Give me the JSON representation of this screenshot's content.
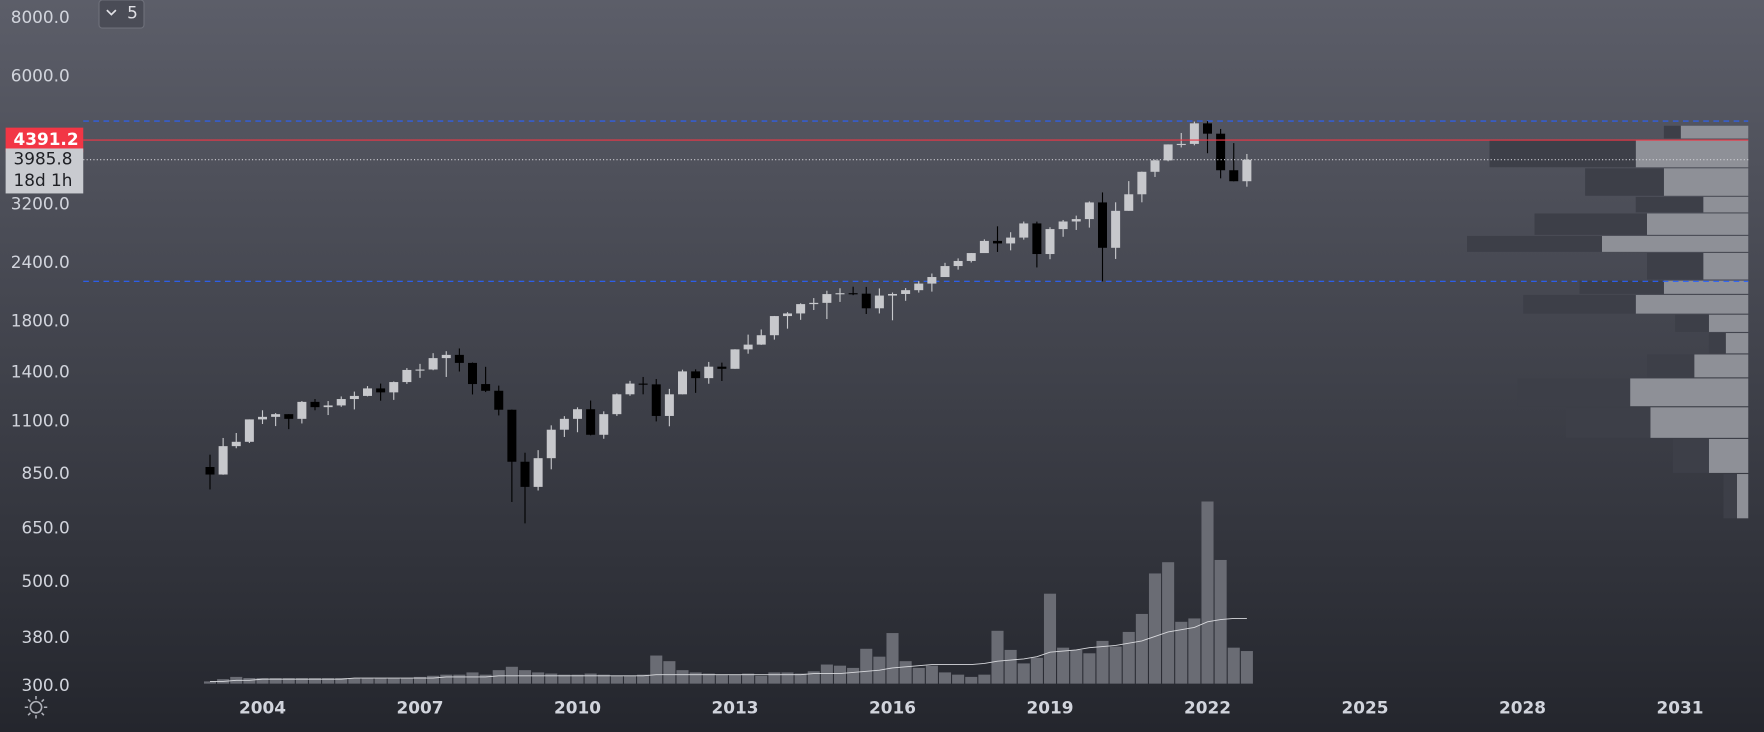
{
  "chart_data": {
    "type": "candlestick",
    "xlim": [
      1999,
      2032.6
    ],
    "xticks": [
      2004,
      2007,
      2010,
      2013,
      2016,
      2019,
      2022,
      2025,
      2028,
      2031
    ],
    "ylim": [
      300,
      8740
    ],
    "log_scale": true,
    "grid": false,
    "yticks": [
      {
        "value": 8000,
        "label": "8000.0"
      },
      {
        "value": 6000,
        "label": "6000.0"
      },
      {
        "value": 3200,
        "label": "3200.0"
      },
      {
        "value": 2400,
        "label": "2400.0"
      },
      {
        "value": 1800,
        "label": "1800.0"
      },
      {
        "value": 1400,
        "label": "1400.0"
      },
      {
        "value": 1100,
        "label": "1100.0"
      },
      {
        "value": 850,
        "label": "850.0"
      },
      {
        "value": 650,
        "label": "650.0"
      },
      {
        "value": 500,
        "label": "500.0"
      },
      {
        "value": 380,
        "label": "380.0"
      },
      {
        "value": 300,
        "label": "300.0"
      }
    ],
    "interval_button": "5",
    "marker_price": 4391.2,
    "marker_color": "#f23645",
    "last_price": 3985.8,
    "countdown": "18d 1h",
    "range_lines": [
      4818.6,
      2191.9
    ],
    "range_color": "#2962ff",
    "bull_color": "#c7c8cc",
    "bear_color": "#000000",
    "x": [
      2003,
      2003.25,
      2003.5,
      2003.75,
      2004,
      2004.25,
      2004.5,
      2004.75,
      2005,
      2005.25,
      2005.5,
      2005.75,
      2006,
      2006.25,
      2006.5,
      2006.75,
      2007,
      2007.25,
      2007.5,
      2007.75,
      2008,
      2008.25,
      2008.5,
      2008.75,
      2009,
      2009.25,
      2009.5,
      2009.75,
      2010,
      2010.25,
      2010.5,
      2010.75,
      2011,
      2011.25,
      2011.5,
      2011.75,
      2012,
      2012.25,
      2012.5,
      2012.75,
      2013,
      2013.25,
      2013.5,
      2013.75,
      2014,
      2014.25,
      2014.5,
      2014.75,
      2015,
      2015.25,
      2015.5,
      2015.75,
      2016,
      2016.25,
      2016.5,
      2016.75,
      2017,
      2017.25,
      2017.5,
      2017.75,
      2018,
      2018.25,
      2018.5,
      2018.75,
      2019,
      2019.25,
      2019.5,
      2019.75,
      2020,
      2020.25,
      2020.5,
      2020.75,
      2021,
      2021.25,
      2021.5,
      2021.75,
      2022,
      2022.25,
      2022.5,
      2022.75
    ],
    "open": [
      880,
      848,
      975,
      996,
      1112,
      1126,
      1141,
      1115,
      1212,
      1181,
      1191,
      1229,
      1248,
      1295,
      1270,
      1336,
      1418,
      1421,
      1503,
      1527,
      1468,
      1323,
      1280,
      1166,
      903,
      798,
      919,
      1057,
      1115,
      1169,
      1031,
      1141,
      1258,
      1326,
      1321,
      1131,
      1258,
      1408,
      1362,
      1441,
      1426,
      1569,
      1606,
      1682,
      1848,
      1872,
      1960,
      1972,
      2059,
      2068,
      2063,
      1920,
      2044,
      2060,
      2099,
      2168,
      2239,
      2363,
      2423,
      2519,
      2674,
      2641,
      2718,
      2914,
      2507,
      2834,
      2942,
      2977,
      3231,
      2585,
      3100,
      3363,
      3756,
      3973,
      4297,
      4308,
      4766,
      4530,
      3785,
      3586
    ],
    "high": [
      935,
      1015,
      1040,
      1112,
      1163,
      1147,
      1141,
      1217,
      1229,
      1217,
      1245,
      1275,
      1310,
      1326,
      1340,
      1431,
      1461,
      1540,
      1555,
      1576,
      1471,
      1440,
      1313,
      1167,
      944,
      956,
      1080,
      1130,
      1180,
      1220,
      1157,
      1263,
      1344,
      1370,
      1356,
      1292,
      1420,
      1422,
      1475,
      1470,
      1570,
      1687,
      1730,
      1849,
      1884,
      1968,
      2019,
      2093,
      2119,
      2135,
      2133,
      2117,
      2075,
      2121,
      2194,
      2278,
      2401,
      2454,
      2520,
      2695,
      2873,
      2791,
      2941,
      2940,
      2860,
      2964,
      3028,
      3247,
      3394,
      3233,
      3588,
      3760,
      3984,
      4298,
      4546,
      4808,
      4818,
      4637,
      4325,
      4100
    ],
    "low": [
      788,
      847,
      965,
      990,
      1087,
      1076,
      1060,
      1090,
      1163,
      1136,
      1183,
      1168,
      1245,
      1219,
      1224,
      1324,
      1364,
      1416,
      1370,
      1407,
      1257,
      1272,
      1134,
      741,
      667,
      784,
      870,
      1020,
      1044,
      1028,
      1011,
      1131,
      1249,
      1258,
      1101,
      1075,
      1258,
      1267,
      1325,
      1343,
      1426,
      1536,
      1604,
      1646,
      1737,
      1814,
      1904,
      1821,
      1981,
      2048,
      1867,
      1872,
      1810,
      1992,
      2074,
      2084,
      2245,
      2322,
      2405,
      2520,
      2533,
      2553,
      2691,
      2347,
      2444,
      2729,
      2822,
      2855,
      2192,
      2447,
      3101,
      3233,
      3662,
      3955,
      4234,
      4278,
      4115,
      3637,
      3584,
      3491
    ],
    "close": [
      848,
      975,
      996,
      1112,
      1126,
      1141,
      1115,
      1212,
      1181,
      1191,
      1229,
      1248,
      1295,
      1270,
      1336,
      1418,
      1421,
      1503,
      1527,
      1468,
      1323,
      1280,
      1166,
      903,
      798,
      919,
      1057,
      1115,
      1169,
      1031,
      1141,
      1258,
      1326,
      1321,
      1131,
      1258,
      1408,
      1362,
      1441,
      1426,
      1569,
      1606,
      1682,
      1848,
      1872,
      1960,
      1972,
      2059,
      2068,
      2063,
      1920,
      2044,
      2060,
      2099,
      2168,
      2239,
      2363,
      2423,
      2519,
      2674,
      2641,
      2718,
      2914,
      2507,
      2834,
      2942,
      2977,
      3231,
      2585,
      3100,
      3363,
      3756,
      3973,
      4297,
      4308,
      4766,
      4530,
      3785,
      3586,
      3985.8
    ],
    "vlim": [
      0,
      200
    ],
    "volume_color": "#6a6c74",
    "volume": [
      2,
      4,
      6,
      5,
      5,
      5,
      5,
      5,
      5,
      5,
      5,
      5,
      5,
      5,
      5,
      5,
      6,
      7,
      8,
      8,
      10,
      8,
      12,
      15,
      12,
      10,
      9,
      8,
      8,
      9,
      8,
      7,
      7,
      8,
      25,
      20,
      12,
      10,
      9,
      8,
      8,
      9,
      7,
      10,
      10,
      9,
      11,
      17,
      16,
      14,
      31,
      24,
      45,
      20,
      14,
      16,
      10,
      8,
      6,
      8,
      47,
      30,
      18,
      23,
      80,
      32,
      30,
      27,
      38,
      33,
      46,
      62,
      98,
      108,
      55,
      58,
      162,
      110,
      32,
      29
    ],
    "volume_ma": [
      2,
      2,
      3,
      3,
      4,
      4,
      4,
      4,
      4,
      4,
      4,
      5,
      5,
      5,
      5,
      5,
      5,
      5,
      6,
      6,
      6,
      6,
      7,
      7,
      7,
      7,
      7,
      7,
      7,
      7,
      7,
      7,
      7,
      7,
      8,
      8,
      8,
      8,
      8,
      8,
      8,
      8,
      8,
      8,
      8,
      8,
      9,
      9,
      9,
      10,
      11,
      12,
      14,
      15,
      16,
      17,
      17,
      17,
      17,
      18,
      20,
      21,
      22,
      24,
      28,
      29,
      30,
      32,
      33,
      34,
      36,
      38,
      42,
      46,
      48,
      50,
      55,
      57,
      58,
      58
    ],
    "plim": [
      0,
      300
    ],
    "profile_levels": [
      4710,
      4400,
      3820,
      3320,
      3060,
      2740,
      2520,
      2200,
      2050,
      1860,
      1700,
      1530,
      1360,
      1180,
      1010,
      850,
      680
    ],
    "profile_up": [
      60,
      100,
      75,
      40,
      90,
      130,
      40,
      75,
      100,
      35,
      20,
      48,
      105,
      87,
      35,
      10
    ],
    "profile_down": [
      15,
      130,
      70,
      60,
      100,
      120,
      50,
      75,
      100,
      30,
      15,
      42,
      100,
      75,
      32,
      12
    ],
    "profile_up_color": "#8e9097",
    "profile_down_color": "#3d3f48"
  }
}
